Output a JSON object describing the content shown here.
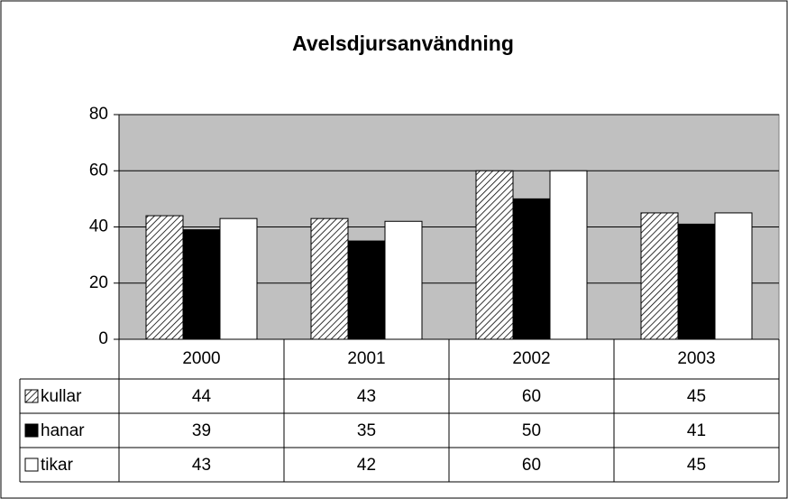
{
  "chart_data": {
    "type": "bar",
    "title": "Avelsdjursanvändning",
    "categories": [
      "2000",
      "2001",
      "2002",
      "2003"
    ],
    "series": [
      {
        "name": "kullar",
        "color": "#ffffff",
        "pattern": "hatch",
        "values": [
          44,
          43,
          60,
          45
        ]
      },
      {
        "name": "hanar",
        "color": "#000000",
        "values": [
          39,
          35,
          50,
          41
        ]
      },
      {
        "name": "tikar",
        "color": "#ffffff",
        "values": [
          43,
          42,
          60,
          45
        ]
      }
    ],
    "ylim": [
      0,
      80
    ],
    "yticks": [
      0,
      20,
      40,
      60,
      80
    ],
    "grid": true,
    "plot_background": "#c0c0c0"
  }
}
